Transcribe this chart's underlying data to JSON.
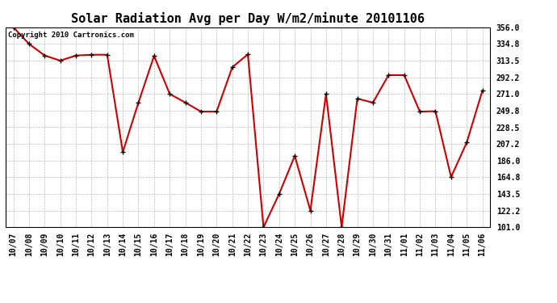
{
  "title": "Solar Radiation Avg per Day W/m2/minute 20101106",
  "copyright": "Copyright 2010 Cartronics.com",
  "dates": [
    "10/07",
    "10/08",
    "10/09",
    "10/10",
    "10/11",
    "10/12",
    "10/13",
    "10/14",
    "10/15",
    "10/16",
    "10/17",
    "10/18",
    "10/19",
    "10/20",
    "10/21",
    "10/22",
    "10/23",
    "10/24",
    "10/25",
    "10/26",
    "10/27",
    "10/28",
    "10/29",
    "10/30",
    "10/31",
    "11/01",
    "11/02",
    "11/03",
    "11/04",
    "11/05",
    "11/06"
  ],
  "values": [
    356.0,
    334.8,
    320.0,
    313.5,
    320.0,
    321.0,
    321.0,
    197.0,
    260.0,
    319.5,
    271.0,
    260.0,
    248.5,
    248.5,
    305.0,
    321.5,
    101.0,
    143.5,
    192.0,
    122.2,
    271.0,
    101.0,
    265.0,
    260.0,
    295.0,
    295.0,
    248.5,
    249.0,
    165.0,
    209.0,
    275.0
  ],
  "line_color": "#cc0000",
  "marker_color": "#000000",
  "background_color": "#ffffff",
  "grid_color": "#bbbbbb",
  "ylim": [
    101.0,
    356.0
  ],
  "yticks": [
    101.0,
    122.2,
    143.5,
    164.8,
    186.0,
    207.2,
    228.5,
    249.8,
    271.0,
    292.2,
    313.5,
    334.8,
    356.0
  ],
  "title_fontsize": 11,
  "tick_fontsize": 7,
  "copyright_fontsize": 6.5
}
